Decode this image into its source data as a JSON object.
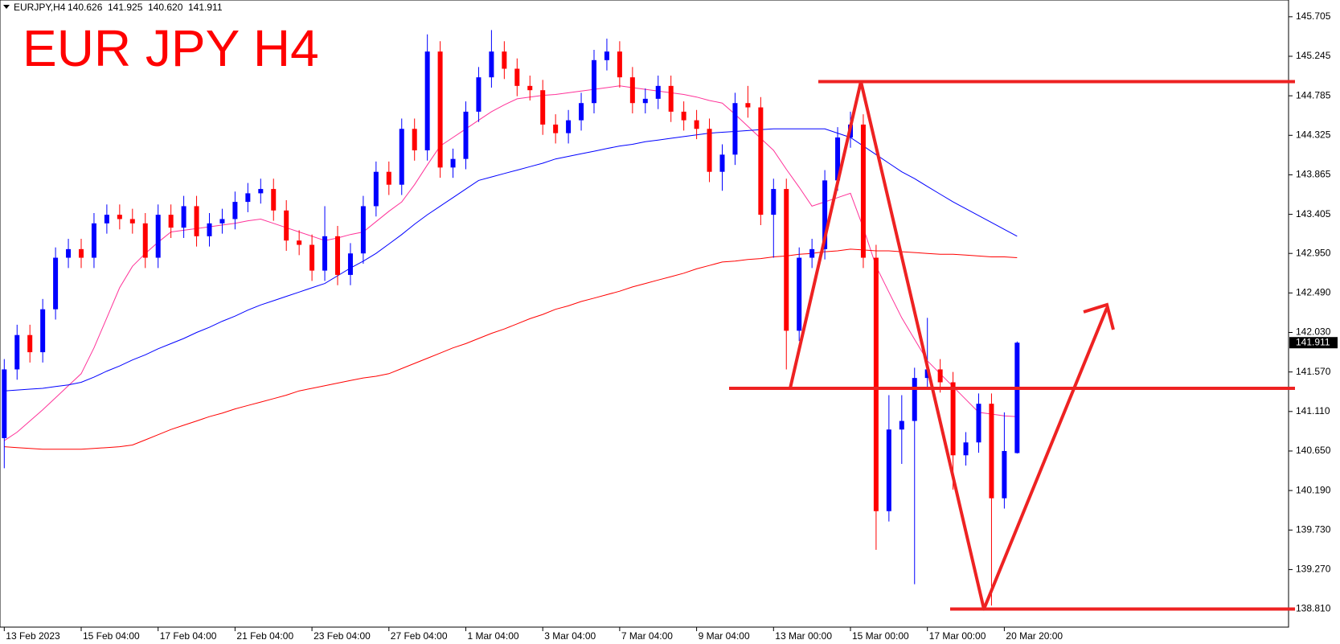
{
  "chart_data": {
    "type": "candlestick",
    "symbol": "EURJPY,H4",
    "ohlc_labels": [
      "140.626",
      "141.925",
      "140.620",
      "141.911"
    ],
    "title": "EUR JPY H4",
    "categories": [
      "13 Feb 2023",
      null,
      null,
      null,
      null,
      null,
      "15 Feb 04:00",
      null,
      null,
      null,
      null,
      null,
      "17 Feb 04:00",
      null,
      null,
      null,
      null,
      null,
      "21 Feb 04:00",
      null,
      null,
      null,
      null,
      null,
      "23 Feb 04:00",
      null,
      null,
      null,
      null,
      null,
      "27 Feb 04:00",
      null,
      null,
      null,
      null,
      null,
      "1 Mar 04:00",
      null,
      null,
      null,
      null,
      null,
      "3 Mar 04:00",
      null,
      null,
      null,
      null,
      null,
      "7 Mar 04:00",
      null,
      null,
      null,
      null,
      null,
      "9 Mar 04:00",
      null,
      null,
      null,
      null,
      null,
      "13 Mar 00:00",
      null,
      null,
      null,
      null,
      null,
      "15 Mar 00:00",
      null,
      null,
      null,
      null,
      null,
      "17 Mar 00:00",
      null,
      null,
      null,
      null,
      null,
      "20 Mar 20:00",
      null
    ],
    "open": [
      140.8,
      141.6,
      142.0,
      141.8,
      142.3,
      142.9,
      143.0,
      142.9,
      143.3,
      143.4,
      143.35,
      143.3,
      142.9,
      143.4,
      143.25,
      143.5,
      143.15,
      143.3,
      143.35,
      143.55,
      143.65,
      143.7,
      143.45,
      143.1,
      143.05,
      142.75,
      143.15,
      142.7,
      142.95,
      143.5,
      143.9,
      143.75,
      144.4,
      144.15,
      145.3,
      143.95,
      144.05,
      144.6,
      145.0,
      145.3,
      145.1,
      144.9,
      144.85,
      144.45,
      144.35,
      144.5,
      144.7,
      145.2,
      145.3,
      145.0,
      144.7,
      144.75,
      144.9,
      144.6,
      144.5,
      144.4,
      143.9,
      144.1,
      144.7,
      144.65,
      143.4,
      143.7,
      142.05,
      142.9,
      143.0,
      143.8,
      144.3,
      144.45,
      142.9,
      139.95,
      140.9,
      141.0,
      141.5,
      141.6,
      141.45,
      140.6,
      140.75,
      141.2,
      140.1,
      140.626
    ],
    "high": [
      141.72,
      142.12,
      142.12,
      142.42,
      143.02,
      143.12,
      143.12,
      143.42,
      143.52,
      143.52,
      143.47,
      143.42,
      143.52,
      143.52,
      143.62,
      143.62,
      143.42,
      143.47,
      143.67,
      143.77,
      143.82,
      143.82,
      143.57,
      143.22,
      143.17,
      143.5,
      143.27,
      143.07,
      143.62,
      144.02,
      144.02,
      144.52,
      144.52,
      145.5,
      145.42,
      144.17,
      144.72,
      145.12,
      145.55,
      145.42,
      145.22,
      145.02,
      144.97,
      144.57,
      144.62,
      144.82,
      145.32,
      145.45,
      145.42,
      145.12,
      144.87,
      145.02,
      145.02,
      144.72,
      144.62,
      144.52,
      144.22,
      144.82,
      144.9,
      144.77,
      143.82,
      143.82,
      143.02,
      143.12,
      143.92,
      144.42,
      144.6,
      144.57,
      143.05,
      141.3,
      141.3,
      141.62,
      142.2,
      141.72,
      141.57,
      140.87,
      141.32,
      141.32,
      141.1,
      141.925
    ],
    "low": [
      140.45,
      141.48,
      141.68,
      141.68,
      142.18,
      142.78,
      142.78,
      142.78,
      143.18,
      143.23,
      143.18,
      142.78,
      142.78,
      143.13,
      143.13,
      143.03,
      143.03,
      143.18,
      143.23,
      143.43,
      143.53,
      143.33,
      142.98,
      142.93,
      142.63,
      142.63,
      142.58,
      142.58,
      142.83,
      143.38,
      143.63,
      143.63,
      144.03,
      144.03,
      143.83,
      143.83,
      143.93,
      144.48,
      144.88,
      144.98,
      144.78,
      144.73,
      144.33,
      144.23,
      144.23,
      144.38,
      144.58,
      145.08,
      144.88,
      144.58,
      144.58,
      144.63,
      144.48,
      144.38,
      144.28,
      143.78,
      143.68,
      143.98,
      144.53,
      143.28,
      142.9,
      141.6,
      141.93,
      142.78,
      142.88,
      143.68,
      144.18,
      142.78,
      139.5,
      139.83,
      140.5,
      139.1,
      141.38,
      141.33,
      140.2,
      140.48,
      140.63,
      138.85,
      139.98,
      140.62
    ],
    "close": [
      141.6,
      142.0,
      141.8,
      142.3,
      142.9,
      143.0,
      142.9,
      143.3,
      143.4,
      143.35,
      143.3,
      142.9,
      143.4,
      143.25,
      143.5,
      143.15,
      143.3,
      143.35,
      143.55,
      143.65,
      143.7,
      143.45,
      143.1,
      143.05,
      142.75,
      143.15,
      142.7,
      142.95,
      143.5,
      143.9,
      143.75,
      144.4,
      144.15,
      145.3,
      143.95,
      144.05,
      144.6,
      145.0,
      145.3,
      145.1,
      144.9,
      144.85,
      144.45,
      144.35,
      144.5,
      144.7,
      145.2,
      145.3,
      145.0,
      144.7,
      144.75,
      144.9,
      144.6,
      144.5,
      144.4,
      143.9,
      144.1,
      144.7,
      144.65,
      143.4,
      143.7,
      142.05,
      142.9,
      143.0,
      143.8,
      144.3,
      144.45,
      142.9,
      139.95,
      140.9,
      141.0,
      141.5,
      141.6,
      141.45,
      140.6,
      140.75,
      141.2,
      140.1,
      140.65,
      141.911
    ],
    "up_color": "#0000ff",
    "down_color": "#ff0000",
    "moving_averages": [
      {
        "color": "#ff3399",
        "values": [
          140.77,
          140.87,
          141.0,
          141.13,
          141.27,
          141.41,
          141.55,
          141.85,
          142.2,
          142.55,
          142.8,
          142.95,
          143.08,
          143.2,
          143.22,
          143.24,
          143.26,
          143.28,
          143.3,
          143.33,
          143.35,
          143.3,
          143.25,
          143.2,
          143.15,
          143.1,
          143.13,
          143.17,
          143.2,
          143.32,
          143.44,
          143.55,
          143.75,
          143.98,
          144.2,
          144.3,
          144.4,
          144.5,
          144.6,
          144.68,
          144.75,
          144.77,
          144.79,
          144.8,
          144.82,
          144.84,
          144.86,
          144.88,
          144.9,
          144.88,
          144.86,
          144.84,
          144.82,
          144.8,
          144.77,
          144.73,
          144.7,
          144.57,
          144.43,
          144.29,
          144.15,
          143.93,
          143.72,
          143.5,
          143.55,
          143.6,
          143.65,
          143.25,
          142.8,
          142.5,
          142.2,
          141.95,
          141.7,
          141.55,
          141.4,
          141.25,
          141.1,
          141.08,
          141.06,
          141.05
        ]
      },
      {
        "color": "#0000ff",
        "values": [
          141.35,
          141.36,
          141.37,
          141.38,
          141.4,
          141.42,
          141.45,
          141.51,
          141.58,
          141.64,
          141.71,
          141.77,
          141.84,
          141.9,
          141.96,
          142.03,
          142.09,
          142.16,
          142.22,
          142.29,
          142.35,
          142.4,
          142.45,
          142.5,
          142.55,
          142.6,
          142.69,
          142.78,
          142.86,
          142.95,
          143.06,
          143.17,
          143.29,
          143.4,
          143.5,
          143.6,
          143.7,
          143.8,
          143.84,
          143.88,
          143.92,
          143.96,
          144.0,
          144.05,
          144.08,
          144.11,
          144.14,
          144.17,
          144.2,
          144.22,
          144.25,
          144.27,
          144.29,
          144.31,
          144.33,
          144.35,
          144.36,
          144.37,
          144.38,
          144.39,
          144.4,
          144.4,
          144.4,
          144.4,
          144.4,
          144.35,
          144.3,
          144.2,
          144.1,
          144.0,
          143.9,
          143.82,
          143.73,
          143.64,
          143.55,
          143.47,
          143.39,
          143.31,
          143.23,
          143.15
        ]
      },
      {
        "color": "#ff0000",
        "values": [
          140.7,
          140.69,
          140.68,
          140.67,
          140.67,
          140.67,
          140.67,
          140.68,
          140.69,
          140.7,
          140.72,
          140.78,
          140.84,
          140.9,
          140.95,
          141.0,
          141.05,
          141.09,
          141.14,
          141.18,
          141.22,
          141.26,
          141.3,
          141.35,
          141.38,
          141.41,
          141.44,
          141.47,
          141.5,
          141.52,
          141.55,
          141.61,
          141.67,
          141.73,
          141.79,
          141.85,
          141.9,
          141.96,
          142.02,
          142.07,
          142.13,
          142.19,
          142.24,
          142.3,
          142.34,
          142.39,
          142.43,
          142.47,
          142.51,
          142.56,
          142.6,
          142.64,
          142.68,
          142.72,
          142.77,
          142.81,
          142.85,
          142.86,
          142.88,
          142.89,
          142.91,
          142.92,
          142.94,
          142.95,
          142.97,
          142.98,
          143.0,
          142.99,
          142.98,
          142.98,
          142.97,
          142.96,
          142.95,
          142.94,
          142.94,
          142.93,
          142.92,
          142.91,
          142.91,
          142.9
        ]
      }
    ],
    "levels": [
      144.95,
      141.38,
      138.81
    ],
    "annotation_color": "#ee2222",
    "ylim": [
      138.6,
      145.9
    ],
    "yticks": [
      145.705,
      145.245,
      144.785,
      144.325,
      143.865,
      143.405,
      {
        "value": 142.95,
        "label": "142.950"
      },
      {
        "value": 142.49,
        "label": "142.490"
      },
      {
        "value": 142.03,
        "label": "142.030"
      },
      {
        "value": 141.57,
        "label": "141.570"
      },
      {
        "value": 141.11,
        "label": "141.110"
      },
      {
        "value": 140.65,
        "label": "140.650"
      },
      {
        "value": 140.19,
        "label": "140.190"
      },
      {
        "value": 139.73,
        "label": "139.730"
      },
      {
        "value": 139.27,
        "label": "139.270"
      },
      {
        "value": 138.81,
        "label": "138.810"
      }
    ]
  }
}
